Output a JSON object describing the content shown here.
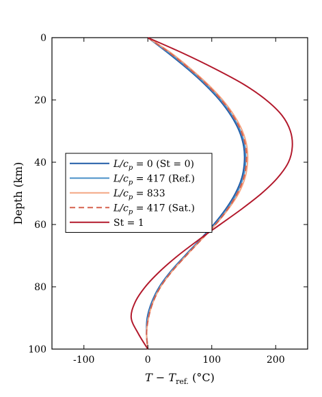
{
  "chart_data": {
    "type": "line",
    "title": "",
    "xlabel": "T − T_ref. (°C)",
    "xlabel_main": "T − T",
    "xlabel_sub": "ref.",
    "xlabel_unit": " (°C)",
    "ylabel": "Depth (km)",
    "xlim": [
      -150,
      250
    ],
    "ylim": [
      0,
      100
    ],
    "y_reversed": true,
    "xticks": [
      -100,
      0,
      100,
      200
    ],
    "xtick_labels": [
      "-100",
      "0",
      "100",
      "200"
    ],
    "yticks": [
      0,
      20,
      40,
      60,
      80,
      100
    ],
    "ytick_labels": [
      "0",
      "20",
      "40",
      "60",
      "80",
      "100"
    ],
    "grid": false,
    "legend_position": "middle-left",
    "series": [
      {
        "name": "L/c_p = 0  (St = 0)",
        "label_parts": [
          "L/c",
          "p",
          " = 0  (St = 0)"
        ],
        "color": "#1f5aa6",
        "dash": "solid",
        "depth": [
          0,
          5,
          10,
          15,
          20,
          25,
          30,
          35,
          40,
          45,
          50,
          55,
          60,
          65,
          70,
          75,
          80,
          85,
          90,
          95,
          100
        ],
        "temp": [
          0,
          32,
          62,
          89,
          112,
          130,
          143,
          150,
          151,
          147,
          137,
          122,
          103,
          81,
          58,
          36,
          18,
          6,
          -1,
          -2,
          0
        ]
      },
      {
        "name": "L/c_p = 417 (Ref.)",
        "label_parts": [
          "L/c",
          "p",
          " = 417 (Ref.)"
        ],
        "color": "#4a90c8",
        "dash": "solid",
        "depth": [
          0,
          5,
          10,
          15,
          20,
          25,
          30,
          35,
          40,
          45,
          50,
          55,
          60,
          65,
          70,
          75,
          80,
          85,
          90,
          95,
          100
        ],
        "temp": [
          0,
          34,
          64,
          91,
          114,
          132,
          145,
          152,
          153,
          149,
          139,
          124,
          105,
          82,
          59,
          37,
          19,
          7,
          0,
          -2,
          0
        ]
      },
      {
        "name": "L/c_p = 833",
        "label_parts": [
          "L/c",
          "p",
          " = 833"
        ],
        "color": "#f4a582",
        "dash": "solid",
        "depth": [
          0,
          5,
          10,
          15,
          20,
          25,
          30,
          35,
          40,
          45,
          50,
          55,
          60,
          65,
          70,
          75,
          80,
          85,
          90,
          95,
          100
        ],
        "temp": [
          0,
          37,
          67,
          94,
          117,
          135,
          148,
          155,
          156,
          152,
          142,
          126,
          106,
          83,
          60,
          38,
          20,
          8,
          1,
          -2,
          0
        ]
      },
      {
        "name": "L/c_p = 417 (Sat.)",
        "label_parts": [
          "L/c",
          "p",
          " = 417 (Sat.)"
        ],
        "color": "#d6604d",
        "dash": "dashed",
        "depth": [
          0,
          5,
          10,
          15,
          20,
          25,
          30,
          35,
          40,
          45,
          50,
          55,
          60,
          65,
          70,
          75,
          80,
          85,
          90,
          95,
          100
        ],
        "temp": [
          0,
          35,
          65,
          92,
          115,
          133,
          146,
          153,
          154,
          150,
          140,
          125,
          106,
          83,
          60,
          38,
          20,
          8,
          1,
          -2,
          0
        ]
      },
      {
        "name": "St = 1",
        "label_parts": [
          "St = 1",
          "",
          ""
        ],
        "color": "#b2182b",
        "dash": "solid",
        "depth": [
          0,
          5,
          10,
          15,
          20,
          25,
          30,
          35,
          40,
          45,
          50,
          55,
          60,
          65,
          70,
          75,
          80,
          85,
          90,
          95,
          100
        ],
        "temp": [
          0,
          55,
          105,
          150,
          185,
          210,
          223,
          226,
          220,
          203,
          178,
          147,
          113,
          79,
          47,
          19,
          -4,
          -20,
          -26,
          -15,
          0
        ]
      }
    ]
  }
}
